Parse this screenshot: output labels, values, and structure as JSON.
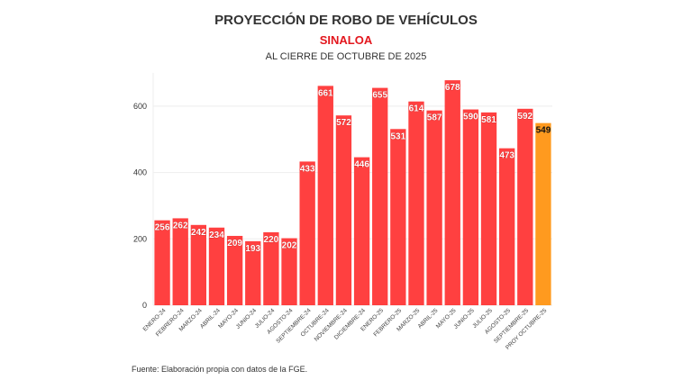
{
  "chart_data": {
    "type": "bar",
    "title": "PROYECCIÓN DE ROBO DE VEHÍCULOS",
    "subtitle": "SINALOA",
    "subtitle2": "AL CIERRE DE OCTUBRE DE 2025",
    "source": "Fuente: Elaboración propia con datos de la FGE.",
    "xlabel": "",
    "ylabel": "",
    "ylim": [
      0,
      700
    ],
    "yticks": [
      0,
      200,
      400,
      600
    ],
    "grid": true,
    "categories": [
      "ENERO-24",
      "FEBRERO-24",
      "MARZO-24",
      "ABRIL-24",
      "MAYO-24",
      "JUNIO-24",
      "JULIO-24",
      "AGOSTO-24",
      "SEPTIEMBRE-24",
      "OCTUBRE-24",
      "NOVIEMBRE-24",
      "DICIEMBRE-24",
      "ENERO-25",
      "FEBRERO-25",
      "MARZO-25",
      "ABRIL-25",
      "MAYO-25",
      "JUNIO-25",
      "JULIO-25",
      "AGOSTO-25",
      "SEPTIEMBRE-25",
      "PROY OCTUBRE-25"
    ],
    "values": [
      256,
      262,
      242,
      234,
      209,
      193,
      220,
      202,
      433,
      661,
      572,
      446,
      655,
      531,
      614,
      587,
      678,
      590,
      581,
      473,
      592,
      549
    ],
    "colors": {
      "actual": "#ff4040",
      "projection": "#ff9a1f",
      "title": "#333333",
      "subtitle": "#e3171e"
    }
  }
}
